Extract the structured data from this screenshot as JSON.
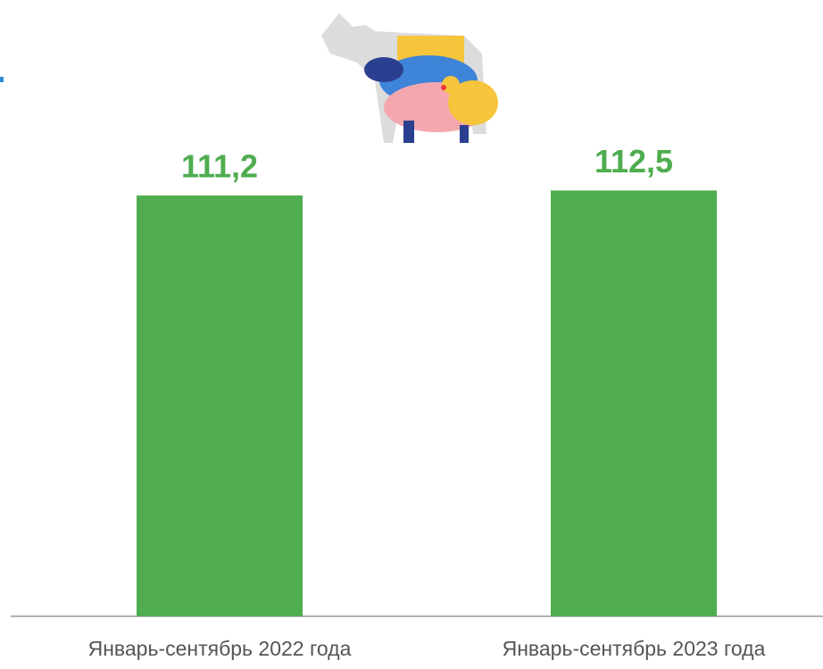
{
  "chart_data": {
    "type": "bar",
    "categories": [
      "Январь-сентябрь 2022 года",
      "Январь-сентябрь 2023 года"
    ],
    "values": [
      111.2,
      112.5
    ],
    "value_labels": [
      "111,2",
      "112,5"
    ],
    "color": "#4fad4f",
    "ylim": [
      0,
      160
    ]
  }
}
